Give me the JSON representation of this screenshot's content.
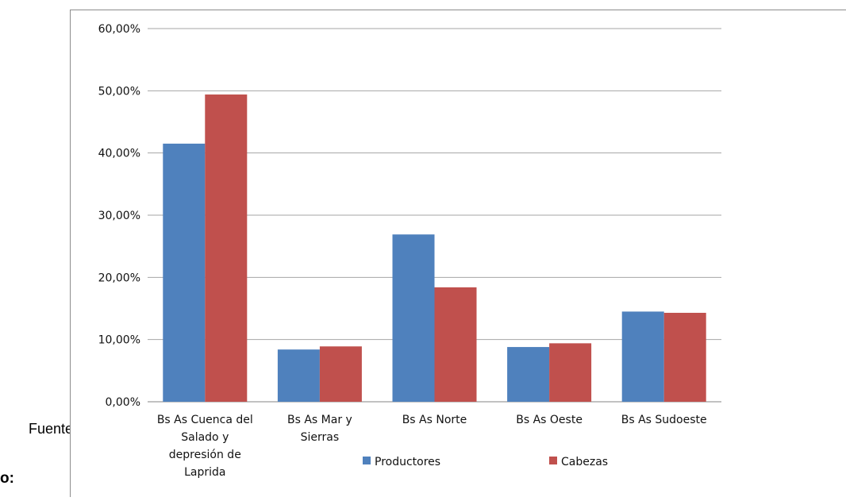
{
  "document": {
    "fuente_label": "Fuente:",
    "heading_fragment": "o:"
  },
  "chart_data": {
    "type": "bar",
    "title": "",
    "xlabel": "",
    "ylabel": "",
    "ylim": [
      0,
      60
    ],
    "yticks": [
      "0,00%",
      "10,00%",
      "20,00%",
      "30,00%",
      "40,00%",
      "50,00%",
      "60,00%"
    ],
    "grid": true,
    "legend_position": "bottom",
    "categories": [
      [
        "Bs As Cuenca del",
        "Salado y",
        "depresión de",
        "Laprida"
      ],
      [
        "Bs As Mar y",
        "Sierras"
      ],
      [
        "Bs As Norte"
      ],
      [
        "Bs As Oeste"
      ],
      [
        "Bs As Sudoeste"
      ]
    ],
    "series": [
      {
        "name": "Productores",
        "color": "#4f81bd",
        "values": [
          41.5,
          8.4,
          26.9,
          8.8,
          14.5
        ]
      },
      {
        "name": "Cabezas",
        "color": "#c0504d",
        "values": [
          49.4,
          8.9,
          18.4,
          9.4,
          14.3
        ]
      }
    ]
  }
}
